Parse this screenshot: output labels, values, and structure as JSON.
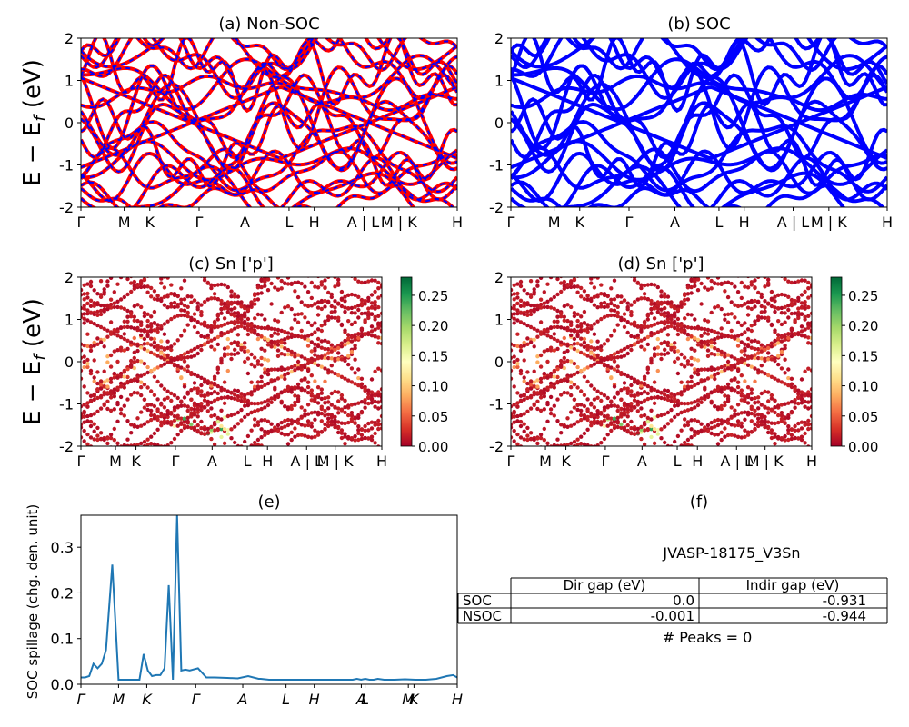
{
  "chart_data": [
    {
      "panel": "a",
      "type": "line",
      "title": "(a) Non-SOC",
      "ylabel": "E − E_f (eV)",
      "ylim": [
        -2,
        2
      ],
      "yticks": [
        -2,
        -1,
        0,
        1,
        2
      ],
      "kpath": [
        "Γ",
        "M",
        "K",
        "Γ",
        "A",
        "L",
        "H",
        "A | L",
        "M | K",
        "H"
      ],
      "series": [
        {
          "color": "#ff0000",
          "style": "solid"
        },
        {
          "color": "#0000ff",
          "style": "dashed"
        }
      ],
      "notes": "band structure; many bands crossing the energy window"
    },
    {
      "panel": "b",
      "type": "line",
      "title": "(b) SOC",
      "ylim": [
        -2,
        2
      ],
      "yticks": [
        -2,
        -1,
        0,
        1,
        2
      ],
      "kpath": [
        "Γ",
        "M",
        "K",
        "Γ",
        "A",
        "L",
        "H",
        "A | L",
        "M | K",
        "H"
      ],
      "series": [
        {
          "color": "#0000ff",
          "style": "solid"
        }
      ]
    },
    {
      "panel": "c",
      "type": "scatter",
      "title": "(c)  Sn ['p']",
      "ylabel": "E − E_f (eV)",
      "ylim": [
        -2,
        2
      ],
      "yticks": [
        -2,
        -1,
        0,
        1,
        2
      ],
      "kpath": [
        "Γ",
        "M",
        "K",
        "Γ",
        "A",
        "L",
        "H",
        "A | L",
        "M | K",
        "H"
      ],
      "colorbar": {
        "min": 0.0,
        "max": 0.28,
        "ticks": [
          "0.00",
          "0.05",
          "0.10",
          "0.15",
          "0.20",
          "0.25"
        ],
        "colormap": "RdYlGn"
      }
    },
    {
      "panel": "d",
      "type": "scatter",
      "title": "(d) Sn ['p']",
      "ylim": [
        -2,
        2
      ],
      "yticks": [
        -2,
        -1,
        0,
        1,
        2
      ],
      "kpath": [
        "Γ",
        "M",
        "K",
        "Γ",
        "A",
        "L",
        "H",
        "A | L",
        "M | K",
        "H"
      ],
      "colorbar": {
        "min": 0.0,
        "max": 0.28,
        "ticks": [
          "0.00",
          "0.05",
          "0.10",
          "0.15",
          "0.20",
          "0.25"
        ],
        "colormap": "RdYlGn"
      }
    },
    {
      "panel": "e",
      "type": "line",
      "title": "(e)",
      "ylabel": "SOC spillage (chg. den. unit)",
      "ylim": [
        0,
        0.37
      ],
      "yticks": [
        "0.0",
        "0.1",
        "0.2",
        "0.3"
      ],
      "xticks": [
        "Γ",
        "M",
        "K",
        "Γ",
        "A",
        "L",
        "H",
        "A",
        "L",
        "M",
        "K",
        "H"
      ],
      "series": [
        {
          "color": "#1f77b4",
          "x": [
            0,
            2,
            4,
            6,
            8,
            10,
            12,
            15,
            18,
            20,
            22,
            24,
            26,
            28,
            30,
            32,
            34,
            36,
            38,
            40,
            42,
            44,
            46,
            48,
            50,
            52,
            56,
            60,
            64,
            70,
            75,
            80,
            85,
            86,
            88,
            90,
            94,
            100,
            105,
            110,
            115,
            118,
            120,
            123,
            125,
            128,
            130,
            132,
            134,
            136,
            138,
            140,
            142,
            145,
            150,
            155,
            160,
            165,
            170,
            175,
            178,
            180
          ],
          "y": [
            0.015,
            0.015,
            0.018,
            0.045,
            0.035,
            0.045,
            0.075,
            0.262,
            0.01,
            0.01,
            0.01,
            0.01,
            0.01,
            0.01,
            0.066,
            0.03,
            0.018,
            0.02,
            0.02,
            0.035,
            0.217,
            0.01,
            0.37,
            0.03,
            0.032,
            0.03,
            0.035,
            0.015,
            0.015,
            0.014,
            0.013,
            0.018,
            0.012,
            0.012,
            0.011,
            0.01,
            0.01,
            0.01,
            0.01,
            0.01,
            0.01,
            0.01,
            0.01,
            0.01,
            0.01,
            0.01,
            0.01,
            0.012,
            0.01,
            0.012,
            0.01,
            0.01,
            0.012,
            0.01,
            0.01,
            0.011,
            0.01,
            0.01,
            0.012,
            0.018,
            0.02,
            0.015
          ]
        }
      ]
    }
  ],
  "panel_f": {
    "title": "(f)",
    "material": "JVASP-18175_V3Sn",
    "table": {
      "headers": [
        "",
        "Dir gap (eV)",
        "Indir gap (eV)"
      ],
      "rows": [
        [
          "SOC",
          "0.0",
          "-0.931"
        ],
        [
          "NSOC",
          "-0.001",
          "-0.944"
        ]
      ]
    },
    "peaks": "# Peaks = 0"
  },
  "colors": {
    "red": "#ff0000",
    "blue": "#0000ff",
    "spillage": "#1f77b4"
  }
}
